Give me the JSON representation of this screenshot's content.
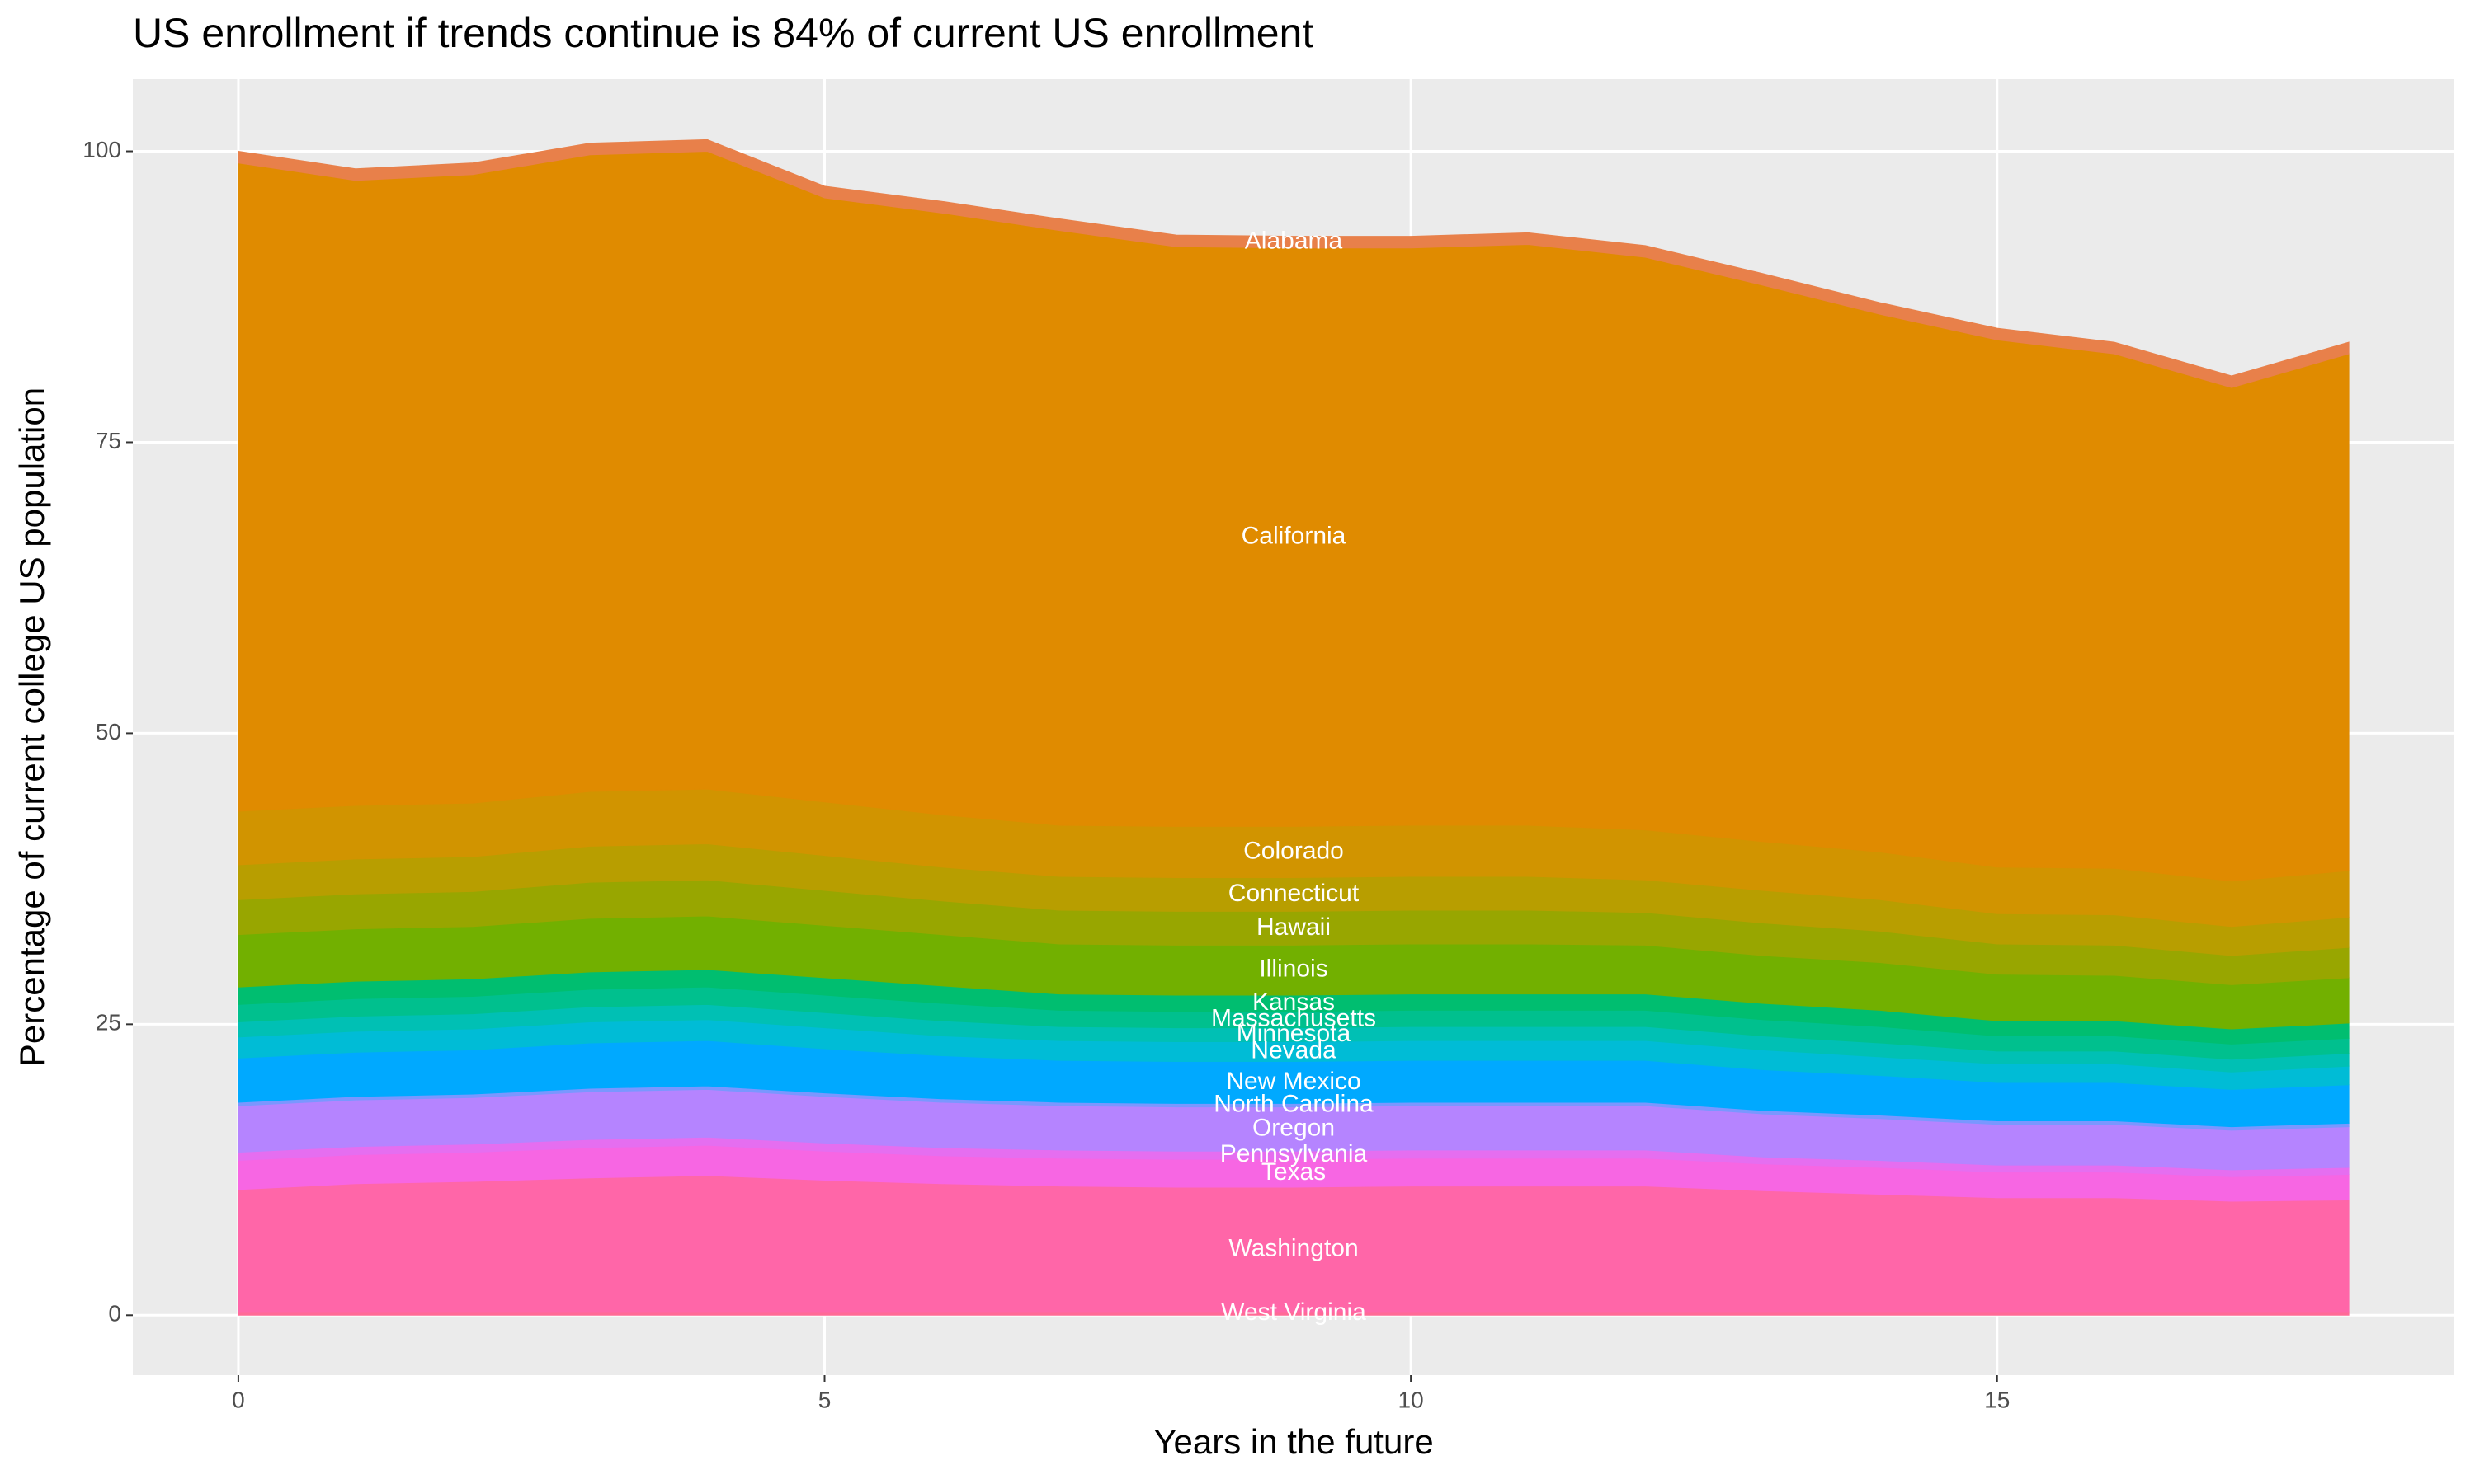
{
  "chart_data": {
    "type": "stacked-area",
    "title": "US enrollment if trends continue is 84% of current US enrollment",
    "x_label": "Years in the future",
    "y_label": "Percentage of current college US population",
    "x": [
      0,
      1,
      2,
      3,
      4,
      5,
      6,
      7,
      8,
      9,
      10,
      11,
      12,
      13,
      14,
      15,
      16,
      17,
      18
    ],
    "xlim": [
      -0.9,
      18.9
    ],
    "xticks": [
      0,
      5,
      10,
      15
    ],
    "ylim": [
      -5.15,
      106.2
    ],
    "yticks": [
      0,
      25,
      50,
      75,
      100
    ],
    "grid": true,
    "series": [
      {
        "name": "Alabama",
        "color": "#E8804A",
        "values": [
          1.0,
          1.0,
          1.0,
          1.0,
          1.0,
          1.0,
          1.0,
          1.0,
          1.0,
          1.0,
          1.0,
          1.0,
          1.0,
          1.0,
          1.0,
          1.0,
          1.0,
          1.0,
          1.0
        ]
      },
      {
        "name": "California",
        "color": "#E08B00",
        "values": [
          55.7,
          53.7,
          54.0,
          54.7,
          54.8,
          51.9,
          51.7,
          51.1,
          49.8,
          49.7,
          49.6,
          49.9,
          49.2,
          47.8,
          46.2,
          45.3,
          44.2,
          42.4,
          44.4
        ]
      },
      {
        "name": "Colorado",
        "color": "#D19400",
        "values": [
          4.6,
          4.6,
          4.6,
          4.7,
          4.7,
          4.6,
          4.5,
          4.4,
          4.4,
          4.4,
          4.4,
          4.4,
          4.3,
          4.2,
          4.1,
          4.0,
          4.0,
          3.9,
          4.0
        ]
      },
      {
        "name": "Connecticut",
        "color": "#B89E00",
        "values": [
          3.0,
          3.0,
          3.0,
          3.1,
          3.1,
          3.0,
          2.9,
          2.9,
          2.9,
          2.9,
          2.9,
          2.9,
          2.8,
          2.8,
          2.7,
          2.6,
          2.6,
          2.5,
          2.6
        ]
      },
      {
        "name": "Hawaii",
        "color": "#98A600",
        "values": [
          3.0,
          3.0,
          3.0,
          3.1,
          3.1,
          3.0,
          2.9,
          2.9,
          2.9,
          2.9,
          2.9,
          2.9,
          2.8,
          2.8,
          2.7,
          2.6,
          2.6,
          2.5,
          2.6
        ]
      },
      {
        "name": "Illinois",
        "color": "#72B000",
        "values": [
          4.5,
          4.5,
          4.5,
          4.6,
          4.6,
          4.5,
          4.4,
          4.3,
          4.3,
          4.3,
          4.3,
          4.3,
          4.2,
          4.1,
          4.1,
          4.0,
          3.9,
          3.8,
          3.9
        ]
      },
      {
        "name": "Kansas",
        "color": "#00BE70",
        "values": [
          1.5,
          1.5,
          1.5,
          1.5,
          1.5,
          1.5,
          1.5,
          1.4,
          1.4,
          1.4,
          1.4,
          1.4,
          1.4,
          1.4,
          1.4,
          1.3,
          1.3,
          1.3,
          1.3
        ]
      },
      {
        "name": "Massachusetts",
        "color": "#00C08E",
        "values": [
          1.5,
          1.5,
          1.5,
          1.5,
          1.5,
          1.5,
          1.5,
          1.4,
          1.4,
          1.4,
          1.4,
          1.4,
          1.4,
          1.4,
          1.4,
          1.3,
          1.3,
          1.3,
          1.3
        ]
      },
      {
        "name": "Minnesota",
        "color": "#00C0B4",
        "values": [
          1.3,
          1.3,
          1.3,
          1.3,
          1.3,
          1.3,
          1.3,
          1.2,
          1.2,
          1.2,
          1.2,
          1.2,
          1.2,
          1.2,
          1.2,
          1.1,
          1.1,
          1.1,
          1.1
        ]
      },
      {
        "name": "Nevada",
        "color": "#00BCD6",
        "values": [
          1.8,
          1.8,
          1.8,
          1.8,
          1.8,
          1.8,
          1.7,
          1.7,
          1.7,
          1.7,
          1.7,
          1.7,
          1.7,
          1.7,
          1.6,
          1.6,
          1.6,
          1.5,
          1.6
        ]
      },
      {
        "name": "New Mexico",
        "color": "#00A9FF",
        "values": [
          3.8,
          3.8,
          3.8,
          3.9,
          3.9,
          3.8,
          3.7,
          3.6,
          3.6,
          3.6,
          3.6,
          3.6,
          3.6,
          3.5,
          3.4,
          3.3,
          3.3,
          3.2,
          3.3
        ]
      },
      {
        "name": "North Carolina",
        "color": "#7A97FF",
        "values": [
          0.3,
          0.3,
          0.3,
          0.3,
          0.3,
          0.3,
          0.3,
          0.3,
          0.3,
          0.3,
          0.3,
          0.3,
          0.3,
          0.3,
          0.3,
          0.3,
          0.3,
          0.3,
          0.3
        ]
      },
      {
        "name": "Oregon",
        "color": "#B584FF",
        "values": [
          4.0,
          4.0,
          4.0,
          4.1,
          4.1,
          4.0,
          3.9,
          3.8,
          3.8,
          3.8,
          3.8,
          3.8,
          3.8,
          3.7,
          3.6,
          3.5,
          3.5,
          3.4,
          3.5
        ]
      },
      {
        "name": "Pennsylvania",
        "color": "#E56EF0",
        "values": [
          0.7,
          0.7,
          0.7,
          0.7,
          0.7,
          0.7,
          0.7,
          0.7,
          0.7,
          0.7,
          0.7,
          0.7,
          0.7,
          0.6,
          0.6,
          0.6,
          0.6,
          0.6,
          0.6
        ]
      },
      {
        "name": "Texas",
        "color": "#F766E3",
        "values": [
          2.5,
          2.5,
          2.5,
          2.6,
          2.6,
          2.5,
          2.4,
          2.4,
          2.4,
          2.4,
          2.4,
          2.4,
          2.4,
          2.3,
          2.3,
          2.2,
          2.2,
          2.1,
          2.2
        ]
      },
      {
        "name": "Washington",
        "color": "#FF66A8",
        "values": [
          10.5,
          11.0,
          11.2,
          11.5,
          11.7,
          11.3,
          11.0,
          10.8,
          10.7,
          10.7,
          10.8,
          10.8,
          10.8,
          10.4,
          10.1,
          9.8,
          9.8,
          9.5,
          9.6
        ]
      },
      {
        "name": "West Virginia",
        "color": "#FF6A96",
        "values": [
          0.3,
          0.3,
          0.3,
          0.3,
          0.3,
          0.3,
          0.3,
          0.3,
          0.3,
          0.3,
          0.3,
          0.3,
          0.3,
          0.3,
          0.3,
          0.3,
          0.3,
          0.3,
          0.3
        ]
      }
    ]
  }
}
